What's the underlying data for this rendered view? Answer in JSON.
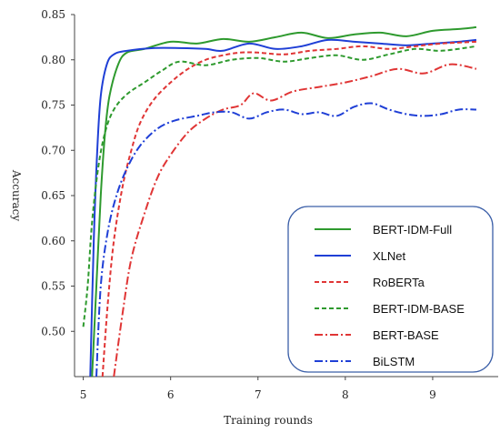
{
  "chart_data": {
    "type": "line",
    "xlabel": "Training rounds",
    "ylabel": "Accuracy",
    "xlim": [
      4.9,
      9.75
    ],
    "ylim": [
      0.45,
      0.85
    ],
    "xticks": [
      "5",
      "6",
      "7",
      "8",
      "9"
    ],
    "yticks": [
      "0.50",
      "0.55",
      "0.60",
      "0.65",
      "0.70",
      "0.75",
      "0.80",
      "0.85"
    ],
    "grid": false,
    "legend_position": "bottom-right",
    "series": [
      {
        "name": "BERT-IDM-Full",
        "color": "#2e9a2e",
        "dash": "solid",
        "points": [
          [
            5.1,
            0.45
          ],
          [
            5.15,
            0.55
          ],
          [
            5.2,
            0.65
          ],
          [
            5.25,
            0.72
          ],
          [
            5.3,
            0.76
          ],
          [
            5.4,
            0.795
          ],
          [
            5.5,
            0.808
          ],
          [
            5.7,
            0.812
          ],
          [
            6.0,
            0.82
          ],
          [
            6.3,
            0.818
          ],
          [
            6.6,
            0.823
          ],
          [
            6.9,
            0.82
          ],
          [
            7.2,
            0.825
          ],
          [
            7.5,
            0.83
          ],
          [
            7.8,
            0.824
          ],
          [
            8.1,
            0.828
          ],
          [
            8.4,
            0.83
          ],
          [
            8.7,
            0.826
          ],
          [
            9.0,
            0.832
          ],
          [
            9.3,
            0.834
          ],
          [
            9.5,
            0.836
          ]
        ]
      },
      {
        "name": "XLNet",
        "color": "#1f3fd6",
        "dash": "solid",
        "points": [
          [
            5.08,
            0.45
          ],
          [
            5.12,
            0.6
          ],
          [
            5.16,
            0.7
          ],
          [
            5.2,
            0.76
          ],
          [
            5.27,
            0.795
          ],
          [
            5.35,
            0.806
          ],
          [
            5.5,
            0.81
          ],
          [
            5.8,
            0.813
          ],
          [
            6.1,
            0.813
          ],
          [
            6.4,
            0.812
          ],
          [
            6.6,
            0.81
          ],
          [
            6.9,
            0.818
          ],
          [
            7.2,
            0.812
          ],
          [
            7.5,
            0.815
          ],
          [
            7.8,
            0.822
          ],
          [
            8.1,
            0.82
          ],
          [
            8.4,
            0.818
          ],
          [
            8.7,
            0.816
          ],
          [
            9.0,
            0.818
          ],
          [
            9.3,
            0.82
          ],
          [
            9.5,
            0.822
          ]
        ]
      },
      {
        "name": "RoBERTa",
        "color": "#e03535",
        "dash": "dashed",
        "points": [
          [
            5.22,
            0.45
          ],
          [
            5.28,
            0.53
          ],
          [
            5.35,
            0.6
          ],
          [
            5.45,
            0.66
          ],
          [
            5.55,
            0.7
          ],
          [
            5.65,
            0.73
          ],
          [
            5.8,
            0.755
          ],
          [
            6.0,
            0.775
          ],
          [
            6.2,
            0.79
          ],
          [
            6.4,
            0.8
          ],
          [
            6.6,
            0.805
          ],
          [
            6.8,
            0.808
          ],
          [
            7.0,
            0.808
          ],
          [
            7.3,
            0.806
          ],
          [
            7.6,
            0.81
          ],
          [
            7.9,
            0.812
          ],
          [
            8.2,
            0.815
          ],
          [
            8.5,
            0.812
          ],
          [
            8.8,
            0.815
          ],
          [
            9.1,
            0.818
          ],
          [
            9.5,
            0.82
          ]
        ]
      },
      {
        "name": "BERT-IDM-BASE",
        "color": "#2e9a2e",
        "dash": "dashed",
        "points": [
          [
            5.0,
            0.505
          ],
          [
            5.05,
            0.55
          ],
          [
            5.1,
            0.62
          ],
          [
            5.17,
            0.68
          ],
          [
            5.25,
            0.72
          ],
          [
            5.35,
            0.745
          ],
          [
            5.5,
            0.762
          ],
          [
            5.7,
            0.775
          ],
          [
            5.9,
            0.788
          ],
          [
            6.1,
            0.798
          ],
          [
            6.4,
            0.794
          ],
          [
            6.7,
            0.8
          ],
          [
            7.0,
            0.802
          ],
          [
            7.3,
            0.798
          ],
          [
            7.6,
            0.802
          ],
          [
            7.9,
            0.805
          ],
          [
            8.2,
            0.8
          ],
          [
            8.5,
            0.806
          ],
          [
            8.8,
            0.812
          ],
          [
            9.1,
            0.81
          ],
          [
            9.5,
            0.815
          ]
        ]
      },
      {
        "name": "BERT-BASE",
        "color": "#e03535",
        "dash": "dashdot",
        "points": [
          [
            5.35,
            0.45
          ],
          [
            5.45,
            0.52
          ],
          [
            5.55,
            0.58
          ],
          [
            5.7,
            0.63
          ],
          [
            5.85,
            0.67
          ],
          [
            6.0,
            0.695
          ],
          [
            6.2,
            0.72
          ],
          [
            6.4,
            0.735
          ],
          [
            6.6,
            0.745
          ],
          [
            6.8,
            0.75
          ],
          [
            6.95,
            0.763
          ],
          [
            7.15,
            0.755
          ],
          [
            7.4,
            0.765
          ],
          [
            7.7,
            0.77
          ],
          [
            8.0,
            0.775
          ],
          [
            8.3,
            0.782
          ],
          [
            8.6,
            0.79
          ],
          [
            8.9,
            0.785
          ],
          [
            9.2,
            0.795
          ],
          [
            9.5,
            0.79
          ]
        ]
      },
      {
        "name": "BiLSTM",
        "color": "#1f3fd6",
        "dash": "dashdot",
        "points": [
          [
            5.15,
            0.45
          ],
          [
            5.2,
            0.55
          ],
          [
            5.28,
            0.61
          ],
          [
            5.38,
            0.65
          ],
          [
            5.5,
            0.68
          ],
          [
            5.65,
            0.705
          ],
          [
            5.85,
            0.724
          ],
          [
            6.05,
            0.733
          ],
          [
            6.3,
            0.738
          ],
          [
            6.5,
            0.742
          ],
          [
            6.7,
            0.742
          ],
          [
            6.9,
            0.735
          ],
          [
            7.1,
            0.742
          ],
          [
            7.3,
            0.745
          ],
          [
            7.5,
            0.74
          ],
          [
            7.7,
            0.742
          ],
          [
            7.9,
            0.738
          ],
          [
            8.1,
            0.748
          ],
          [
            8.3,
            0.752
          ],
          [
            8.5,
            0.745
          ],
          [
            8.7,
            0.74
          ],
          [
            8.9,
            0.738
          ],
          [
            9.1,
            0.74
          ],
          [
            9.3,
            0.745
          ],
          [
            9.5,
            0.745
          ]
        ]
      }
    ]
  }
}
